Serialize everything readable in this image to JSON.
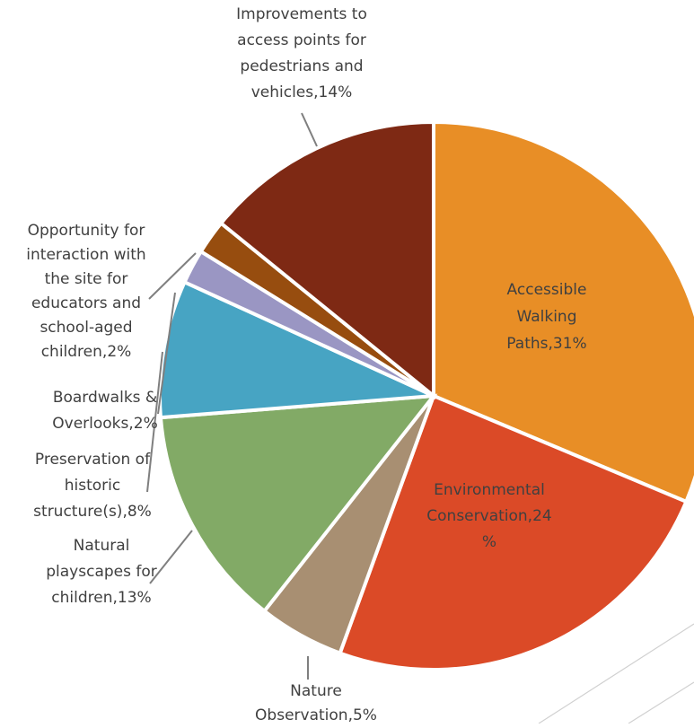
{
  "chart_data": {
    "type": "pie",
    "title": "",
    "slices": [
      {
        "label": "Accessible Walking Paths",
        "value": 31,
        "color": "#E88E26",
        "lines": [
          "Accessible",
          "Walking",
          "Paths,31%"
        ]
      },
      {
        "label": "Environmental Conservation",
        "value": 24,
        "color": "#DB4A27",
        "lines": [
          "Environmental",
          "Conservation,24",
          "%"
        ]
      },
      {
        "label": "Nature Observation",
        "value": 5,
        "color": "#A88F72",
        "lines": [
          "Nature",
          "Observation,5%"
        ]
      },
      {
        "label": "Natural playscapes for children",
        "value": 13,
        "color": "#82AA66",
        "lines": [
          "Natural",
          "playscapes for",
          "children,13%"
        ]
      },
      {
        "label": "Preservation of historic structure(s)",
        "value": 8,
        "color": "#47A4C3",
        "lines": [
          "Preservation of",
          "historic",
          "structure(s),8%"
        ]
      },
      {
        "label": "Boardwalks & Overlooks",
        "value": 2,
        "color": "#9A96C3",
        "lines": [
          "Boardwalks &",
          "Overlooks,2%"
        ]
      },
      {
        "label": "Opportunity for interaction with the site for educators and school-aged children",
        "value": 2,
        "color": "#974D0F",
        "lines": [
          "Opportunity for",
          "interaction with",
          "the site for",
          "educators and",
          "school-aged",
          "children,2%"
        ]
      },
      {
        "label": "Improvements to access points for pedestrians and vehicles",
        "value": 14,
        "color": "#7E2914",
        "lines": [
          "Improvements to",
          "access points for",
          "pedestrians and",
          "vehicles,14%"
        ]
      }
    ]
  }
}
